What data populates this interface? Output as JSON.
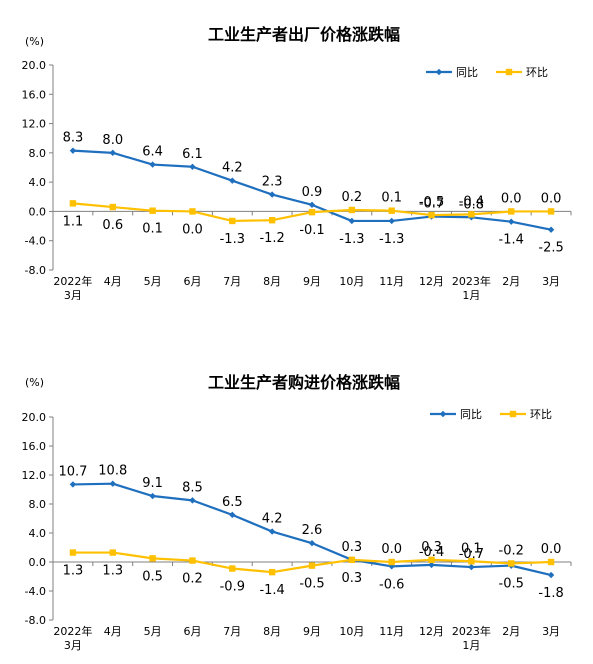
{
  "colors": {
    "yoy": "#1f6fbf",
    "mom": "#ffc000",
    "axis": "#808080"
  },
  "chart_data": [
    {
      "type": "line",
      "title": "工业生产者出厂价格涨跌幅",
      "unit": "(%)",
      "categories": [
        [
          "2022年",
          "3月"
        ],
        [
          "4月"
        ],
        [
          "5月"
        ],
        [
          "6月"
        ],
        [
          "7月"
        ],
        [
          "8月"
        ],
        [
          "9月"
        ],
        [
          "10月"
        ],
        [
          "11月"
        ],
        [
          "12月"
        ],
        [
          "2023年",
          "1月"
        ],
        [
          "2月"
        ],
        [
          "3月"
        ]
      ],
      "ylim": [
        -8.0,
        20.0
      ],
      "yticks": [
        "20.0",
        "16.0",
        "12.0",
        "8.0",
        "4.0",
        "0.0",
        "-4.0",
        "-8.0"
      ],
      "legend_position": "top-right",
      "series": [
        {
          "name": "同比",
          "values": [
            8.3,
            8.0,
            6.4,
            6.1,
            4.2,
            2.3,
            0.9,
            -1.3,
            -1.3,
            -0.7,
            -0.8,
            -1.4,
            -2.5
          ],
          "labels": [
            "8.3",
            "8.0",
            "6.4",
            "6.1",
            "4.2",
            "2.3",
            "0.9",
            "-1.3",
            "-1.3",
            "-0.7",
            "-0.8",
            "-1.4",
            "-2.5"
          ]
        },
        {
          "name": "环比",
          "values": [
            1.1,
            0.6,
            0.1,
            0.0,
            -1.3,
            -1.2,
            -0.1,
            0.2,
            0.1,
            -0.5,
            -0.4,
            0.0,
            0.0
          ],
          "labels": [
            "1.1",
            "0.6",
            "0.1",
            "0.0",
            "-1.3",
            "-1.2",
            "-0.1",
            "0.2",
            "0.1",
            "-0.5",
            "-0.4",
            "0.0",
            "0.0"
          ]
        }
      ]
    },
    {
      "type": "line",
      "title": "工业生产者购进价格涨跌幅",
      "unit": "(%)",
      "categories": [
        [
          "2022年",
          "3月"
        ],
        [
          "4月"
        ],
        [
          "5月"
        ],
        [
          "6月"
        ],
        [
          "7月"
        ],
        [
          "8月"
        ],
        [
          "9月"
        ],
        [
          "10月"
        ],
        [
          "11月"
        ],
        [
          "12月"
        ],
        [
          "2023年",
          "1月"
        ],
        [
          "2月"
        ],
        [
          "3月"
        ]
      ],
      "ylim": [
        -8.0,
        20.0
      ],
      "yticks": [
        "20.0",
        "16.0",
        "12.0",
        "8.0",
        "4.0",
        "0.0",
        "-4.0",
        "-8.0"
      ],
      "legend_position": "top-right",
      "series": [
        {
          "name": "同比",
          "values": [
            10.7,
            10.8,
            9.1,
            8.5,
            6.5,
            4.2,
            2.6,
            0.3,
            -0.6,
            -0.4,
            -0.7,
            -0.5,
            -1.8
          ],
          "labels": [
            "10.7",
            "10.8",
            "9.1",
            "8.5",
            "6.5",
            "4.2",
            "2.6",
            "0.3",
            "-0.6",
            "-0.4",
            "-0.7",
            "-0.5",
            "-1.8"
          ]
        },
        {
          "name": "环比",
          "values": [
            1.3,
            1.3,
            0.5,
            0.2,
            -0.9,
            -1.4,
            -0.5,
            0.3,
            0.0,
            0.3,
            0.1,
            -0.2,
            0.0
          ],
          "labels": [
            "1.3",
            "1.3",
            "0.5",
            "0.2",
            "-0.9",
            "-1.4",
            "-0.5",
            "0.3",
            "0.0",
            "0.3",
            "0.1",
            "-0.2",
            "0.0"
          ]
        }
      ]
    }
  ]
}
